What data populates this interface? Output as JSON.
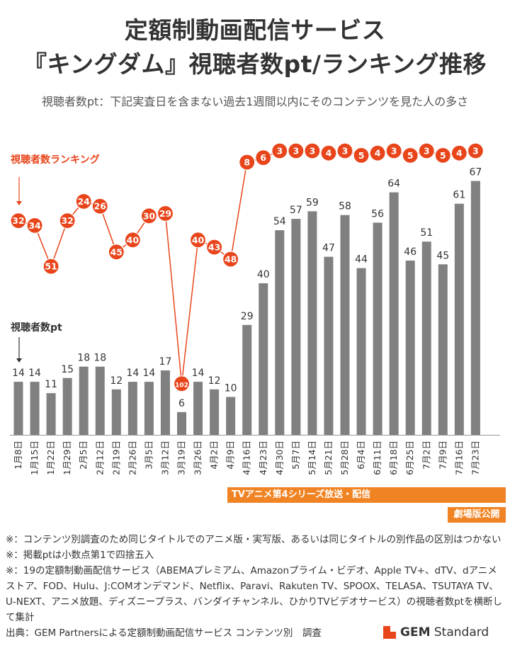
{
  "title_line1": "定額制動画配信サービス",
  "title_line2": "『キングダム』視聴者数pt/ランキング推移",
  "subtitle": "視聴者数pt：下記実査日を含まない過去1週間以内にそのコンテンツを見た人の多さ",
  "rank_series_label": "視聴者数ランキング",
  "pt_series_label": "視聴者数pt",
  "banner_tv": "TVアニメ第4シリーズ放送・配信",
  "banner_movie": "劇場版公開",
  "notes": [
    "※：コンテンツ別調査のため同じタイトルでのアニメ版・実写版、あるいは同じタイトルの別作品の区別はつかない",
    "※：掲載ptは小数点第1で四捨五入",
    "※：19の定額制動画配信サービス（ABEMAプレミアム、Amazonプライム・ビデオ、Apple TV+、dTV、dアニメストア、FOD、Hulu、J:COMオンデマンド、Netflix、Paravi、Rakuten TV、SPOOX、TELASA、TSUTAYA TV、U-NEXT、アニメ放題、ディズニープラス、バンダイチャンネル、ひかりTVビデオサービス）の視聴者数ptを横断して集計"
  ],
  "source": "出典：GEM Partnersによる定額制動画配信サービス コンテンツ別　調査",
  "logo": {
    "mark": "GEM",
    "rest": " Standard"
  },
  "colors": {
    "bar": "#808080",
    "rank": "#e8451b",
    "banner": "#f08424"
  },
  "chart_data": {
    "type": "bar+line",
    "categories": [
      "1月8日",
      "1月15日",
      "1月22日",
      "1月29日",
      "2月5日",
      "2月12日",
      "2月19日",
      "2月26日",
      "3月5日",
      "3月12日",
      "3月19日",
      "3月26日",
      "4月2日",
      "4月9日",
      "4月16日",
      "4月23日",
      "4月30日",
      "5月7日",
      "5月14日",
      "5月21日",
      "5月28日",
      "6月4日",
      "6月11日",
      "6月18日",
      "6月25日",
      "7月2日",
      "7月9日",
      "7月16日",
      "7月23日"
    ],
    "series": [
      {
        "name": "視聴者数pt",
        "kind": "bar",
        "values": [
          14,
          14,
          11,
          15,
          18,
          18,
          12,
          14,
          14,
          17,
          6,
          14,
          12,
          10,
          29,
          40,
          54,
          57,
          59,
          47,
          58,
          44,
          56,
          64,
          46,
          51,
          45,
          61,
          67
        ]
      },
      {
        "name": "視聴者数ランキング",
        "kind": "line-rank",
        "values": [
          32,
          34,
          51,
          32,
          24,
          26,
          45,
          40,
          30,
          29,
          102,
          40,
          43,
          48,
          8,
          6,
          3,
          3,
          3,
          4,
          3,
          5,
          4,
          3,
          5,
          3,
          5,
          4,
          3
        ]
      }
    ]
  }
}
